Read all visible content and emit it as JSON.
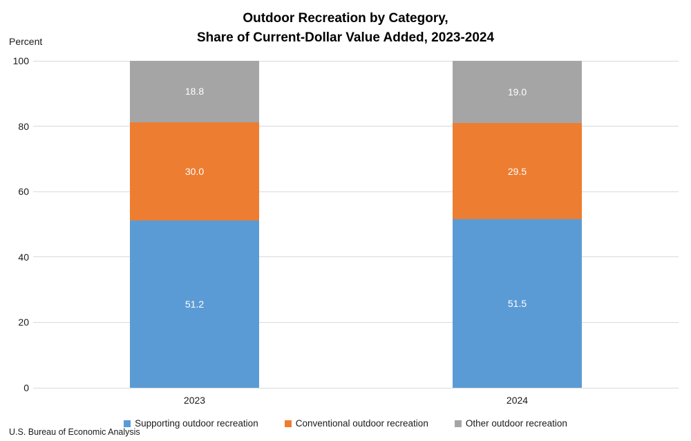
{
  "title": {
    "line1": "Outdoor Recreation by Category,",
    "line2": "Share of Current-Dollar Value Added, 2023-2024"
  },
  "source": "U.S. Bureau of Economic Analysis",
  "chart_data": {
    "type": "bar",
    "stacked": true,
    "title": "Outdoor Recreation by Category, Share of Current-Dollar Value Added, 2023-2024",
    "categories": [
      "2023",
      "2024"
    ],
    "series": [
      {
        "name": "Supporting outdoor recreation",
        "color": "#5B9BD5",
        "values": [
          "51.2",
          "51.5"
        ]
      },
      {
        "name": "Conventional outdoor recreation",
        "color": "#ED7D31",
        "values": [
          "30.0",
          "29.5"
        ]
      },
      {
        "name": "Other outdoor recreation",
        "color": "#A5A5A5",
        "values": [
          "18.8",
          "19.0"
        ]
      }
    ],
    "xlabel": "",
    "ylabel": "Percent",
    "ylim": [
      0,
      100
    ],
    "yticks": [
      0,
      20,
      40,
      60,
      80,
      100
    ],
    "grid": true,
    "gridline_color": "#D9D9D9",
    "label_color": "#FFFFFF",
    "legend_position": "bottom"
  }
}
